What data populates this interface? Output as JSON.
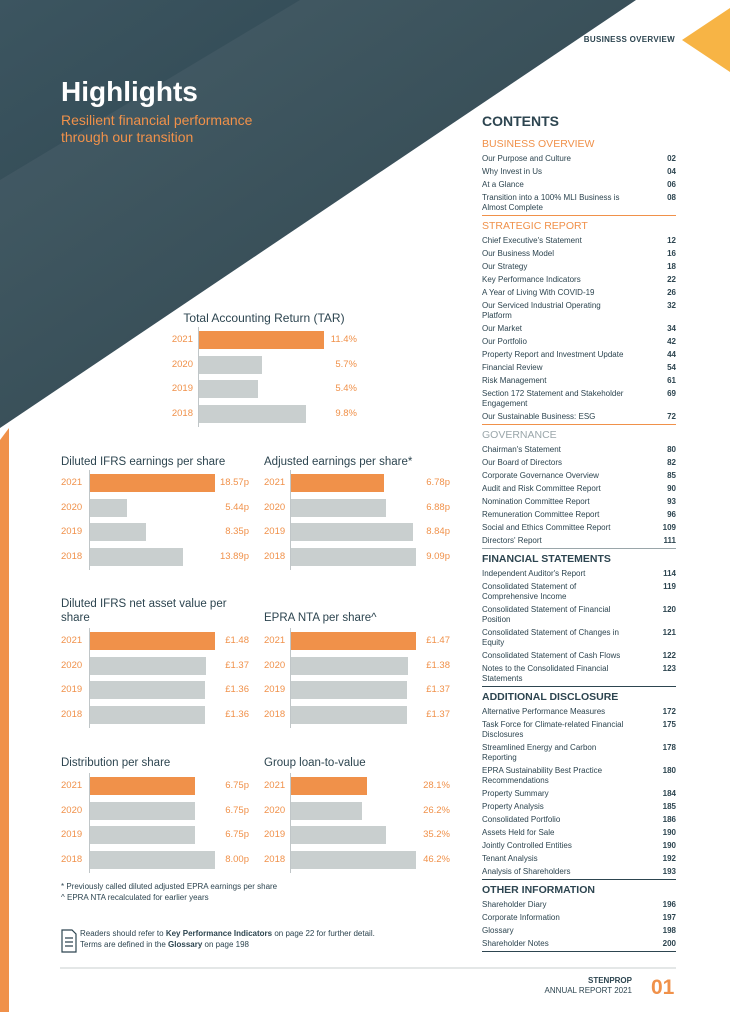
{
  "header": {
    "section": "BUSINESS OVERVIEW",
    "title": "Highlights",
    "subtitle": "Resilient financial performance through our transition"
  },
  "chart_data": [
    {
      "type": "bar",
      "title": "Total Accounting Return (TAR)",
      "categories": [
        "2021",
        "2020",
        "2019",
        "2018"
      ],
      "values": [
        11.4,
        5.7,
        5.4,
        9.8
      ],
      "value_labels": [
        "11.4%",
        "5.7%",
        "5.4%",
        "9.8%"
      ],
      "colors": [
        "#f0914a",
        "#c9cfcf",
        "#c9cfcf",
        "#c9cfcf"
      ]
    },
    {
      "type": "bar",
      "title": "Diluted IFRS earnings per share",
      "categories": [
        "2021",
        "2020",
        "2019",
        "2018"
      ],
      "values": [
        18.57,
        5.44,
        8.35,
        13.89
      ],
      "value_labels": [
        "18.57p",
        "5.44p",
        "8.35p",
        "13.89p"
      ],
      "colors": [
        "#f0914a",
        "#c9cfcf",
        "#c9cfcf",
        "#c9cfcf"
      ]
    },
    {
      "type": "bar",
      "title": "Adjusted earnings per share*",
      "categories": [
        "2021",
        "2020",
        "2019",
        "2018"
      ],
      "values": [
        6.78,
        6.88,
        8.84,
        9.09
      ],
      "value_labels": [
        "6.78p",
        "6.88p",
        "8.84p",
        "9.09p"
      ],
      "colors": [
        "#f0914a",
        "#c9cfcf",
        "#c9cfcf",
        "#c9cfcf"
      ]
    },
    {
      "type": "bar",
      "title": "Diluted IFRS net asset value per share",
      "categories": [
        "2021",
        "2020",
        "2019",
        "2018"
      ],
      "values": [
        1.48,
        1.37,
        1.36,
        1.36
      ],
      "value_labels": [
        "£1.48",
        "£1.37",
        "£1.36",
        "£1.36"
      ],
      "colors": [
        "#f0914a",
        "#c9cfcf",
        "#c9cfcf",
        "#c9cfcf"
      ]
    },
    {
      "type": "bar",
      "title": "EPRA NTA per share^",
      "categories": [
        "2021",
        "2020",
        "2019",
        "2018"
      ],
      "values": [
        1.47,
        1.38,
        1.37,
        1.37
      ],
      "value_labels": [
        "£1.47",
        "£1.38",
        "£1.37",
        "£1.37"
      ],
      "colors": [
        "#f0914a",
        "#c9cfcf",
        "#c9cfcf",
        "#c9cfcf"
      ]
    },
    {
      "type": "bar",
      "title": "Distribution per share",
      "categories": [
        "2021",
        "2020",
        "2019",
        "2018"
      ],
      "values": [
        6.75,
        6.75,
        6.75,
        8.0
      ],
      "value_labels": [
        "6.75p",
        "6.75p",
        "6.75p",
        "8.00p"
      ],
      "colors": [
        "#f0914a",
        "#c9cfcf",
        "#c9cfcf",
        "#c9cfcf"
      ]
    },
    {
      "type": "bar",
      "title": "Group loan-to-value",
      "categories": [
        "2021",
        "2020",
        "2019",
        "2018"
      ],
      "values": [
        28.1,
        26.2,
        35.2,
        46.2
      ],
      "value_labels": [
        "28.1%",
        "26.2%",
        "35.2%",
        "46.2%"
      ],
      "colors": [
        "#f0914a",
        "#c9cfcf",
        "#c9cfcf",
        "#c9cfcf"
      ]
    }
  ],
  "footnotes": [
    "* Previously called diluted adjusted EPRA earnings per share",
    "^ EPRA NTA recalculated for earlier years"
  ],
  "reader_note": [
    [
      "Readers should refer to ",
      "Key Performance Indicators",
      " on page 22 for further detail."
    ],
    [
      "Terms are defined in the ",
      "Glossary",
      " on page 198"
    ]
  ],
  "contents": {
    "heading": "CONTENTS",
    "sections": [
      {
        "title": "BUSINESS OVERVIEW",
        "items": [
          {
            "title": "Our Purpose and Culture",
            "page": "02"
          },
          {
            "title": "Why Invest in Us",
            "page": "04"
          },
          {
            "title": "At a Glance",
            "page": "06"
          },
          {
            "title": "Transition into a 100% MLI Business is Almost Complete",
            "page": "08"
          }
        ]
      },
      {
        "title": "STRATEGIC REPORT",
        "items": [
          {
            "title": "Chief Executive's Statement",
            "page": "12"
          },
          {
            "title": "Our Business Model",
            "page": "16"
          },
          {
            "title": "Our Strategy",
            "page": "18"
          },
          {
            "title": "Key Performance Indicators",
            "page": "22"
          },
          {
            "title": "A Year of Living With COVID-19",
            "page": "26"
          },
          {
            "title": "Our Serviced Industrial Operating Platform",
            "page": "32"
          },
          {
            "title": "Our Market",
            "page": "34"
          },
          {
            "title": "Our Portfolio",
            "page": "42"
          },
          {
            "title": "Property Report and Investment Update",
            "page": "44"
          },
          {
            "title": "Financial Review",
            "page": "54"
          },
          {
            "title": "Risk Management",
            "page": "61"
          },
          {
            "title": "Section 172 Statement and Stakeholder Engagement",
            "page": "69"
          },
          {
            "title": "Our Sustainable Business: ESG",
            "page": "72"
          }
        ]
      },
      {
        "title": "GOVERNANCE",
        "items": [
          {
            "title": "Chairman's Statement",
            "page": "80"
          },
          {
            "title": "Our Board of Directors",
            "page": "82"
          },
          {
            "title": "Corporate Governance Overview",
            "page": "85"
          },
          {
            "title": "Audit and Risk Committee Report",
            "page": "90"
          },
          {
            "title": "Nomination Committee Report",
            "page": "93"
          },
          {
            "title": "Remuneration Committee Report",
            "page": "96"
          },
          {
            "title": "Social and Ethics Committee Report",
            "page": "109"
          },
          {
            "title": "Directors' Report",
            "page": "111"
          }
        ]
      },
      {
        "title": "FINANCIAL STATEMENTS",
        "items": [
          {
            "title": "Independent Auditor's Report",
            "page": "114"
          },
          {
            "title": "Consolidated Statement of Comprehensive Income",
            "page": "119"
          },
          {
            "title": "Consolidated Statement of Financial Position",
            "page": "120"
          },
          {
            "title": "Consolidated Statement of Changes in Equity",
            "page": "121"
          },
          {
            "title": "Consolidated Statement of Cash Flows",
            "page": "122"
          },
          {
            "title": "Notes to the Consolidated Financial Statements",
            "page": "123"
          }
        ]
      },
      {
        "title": "ADDITIONAL DISCLOSURE",
        "items": [
          {
            "title": "Alternative Performance Measures",
            "page": "172"
          },
          {
            "title": "Task Force for Climate-related Financial Disclosures",
            "page": "175"
          },
          {
            "title": "Streamlined Energy and Carbon Reporting",
            "page": "178"
          },
          {
            "title": "EPRA Sustainability Best Practice Recommendations",
            "page": "180"
          },
          {
            "title": "Property Summary",
            "page": "184"
          },
          {
            "title": "Property Analysis",
            "page": "185"
          },
          {
            "title": "Consolidated Portfolio",
            "page": "186"
          },
          {
            "title": "Assets Held for Sale",
            "page": "190"
          },
          {
            "title": "Jointly Controlled Entities",
            "page": "190"
          },
          {
            "title": "Tenant Analysis",
            "page": "192"
          },
          {
            "title": "Analysis of Shareholders",
            "page": "193"
          }
        ]
      },
      {
        "title": "OTHER INFORMATION",
        "items": [
          {
            "title": "Shareholder Diary",
            "page": "196"
          },
          {
            "title": "Corporate Information",
            "page": "197"
          },
          {
            "title": "Glossary",
            "page": "198"
          },
          {
            "title": "Shareholder Notes",
            "page": "200"
          }
        ]
      }
    ]
  },
  "footer": {
    "company": "STENPROP",
    "report": "ANNUAL REPORT 2021",
    "page": "01"
  }
}
